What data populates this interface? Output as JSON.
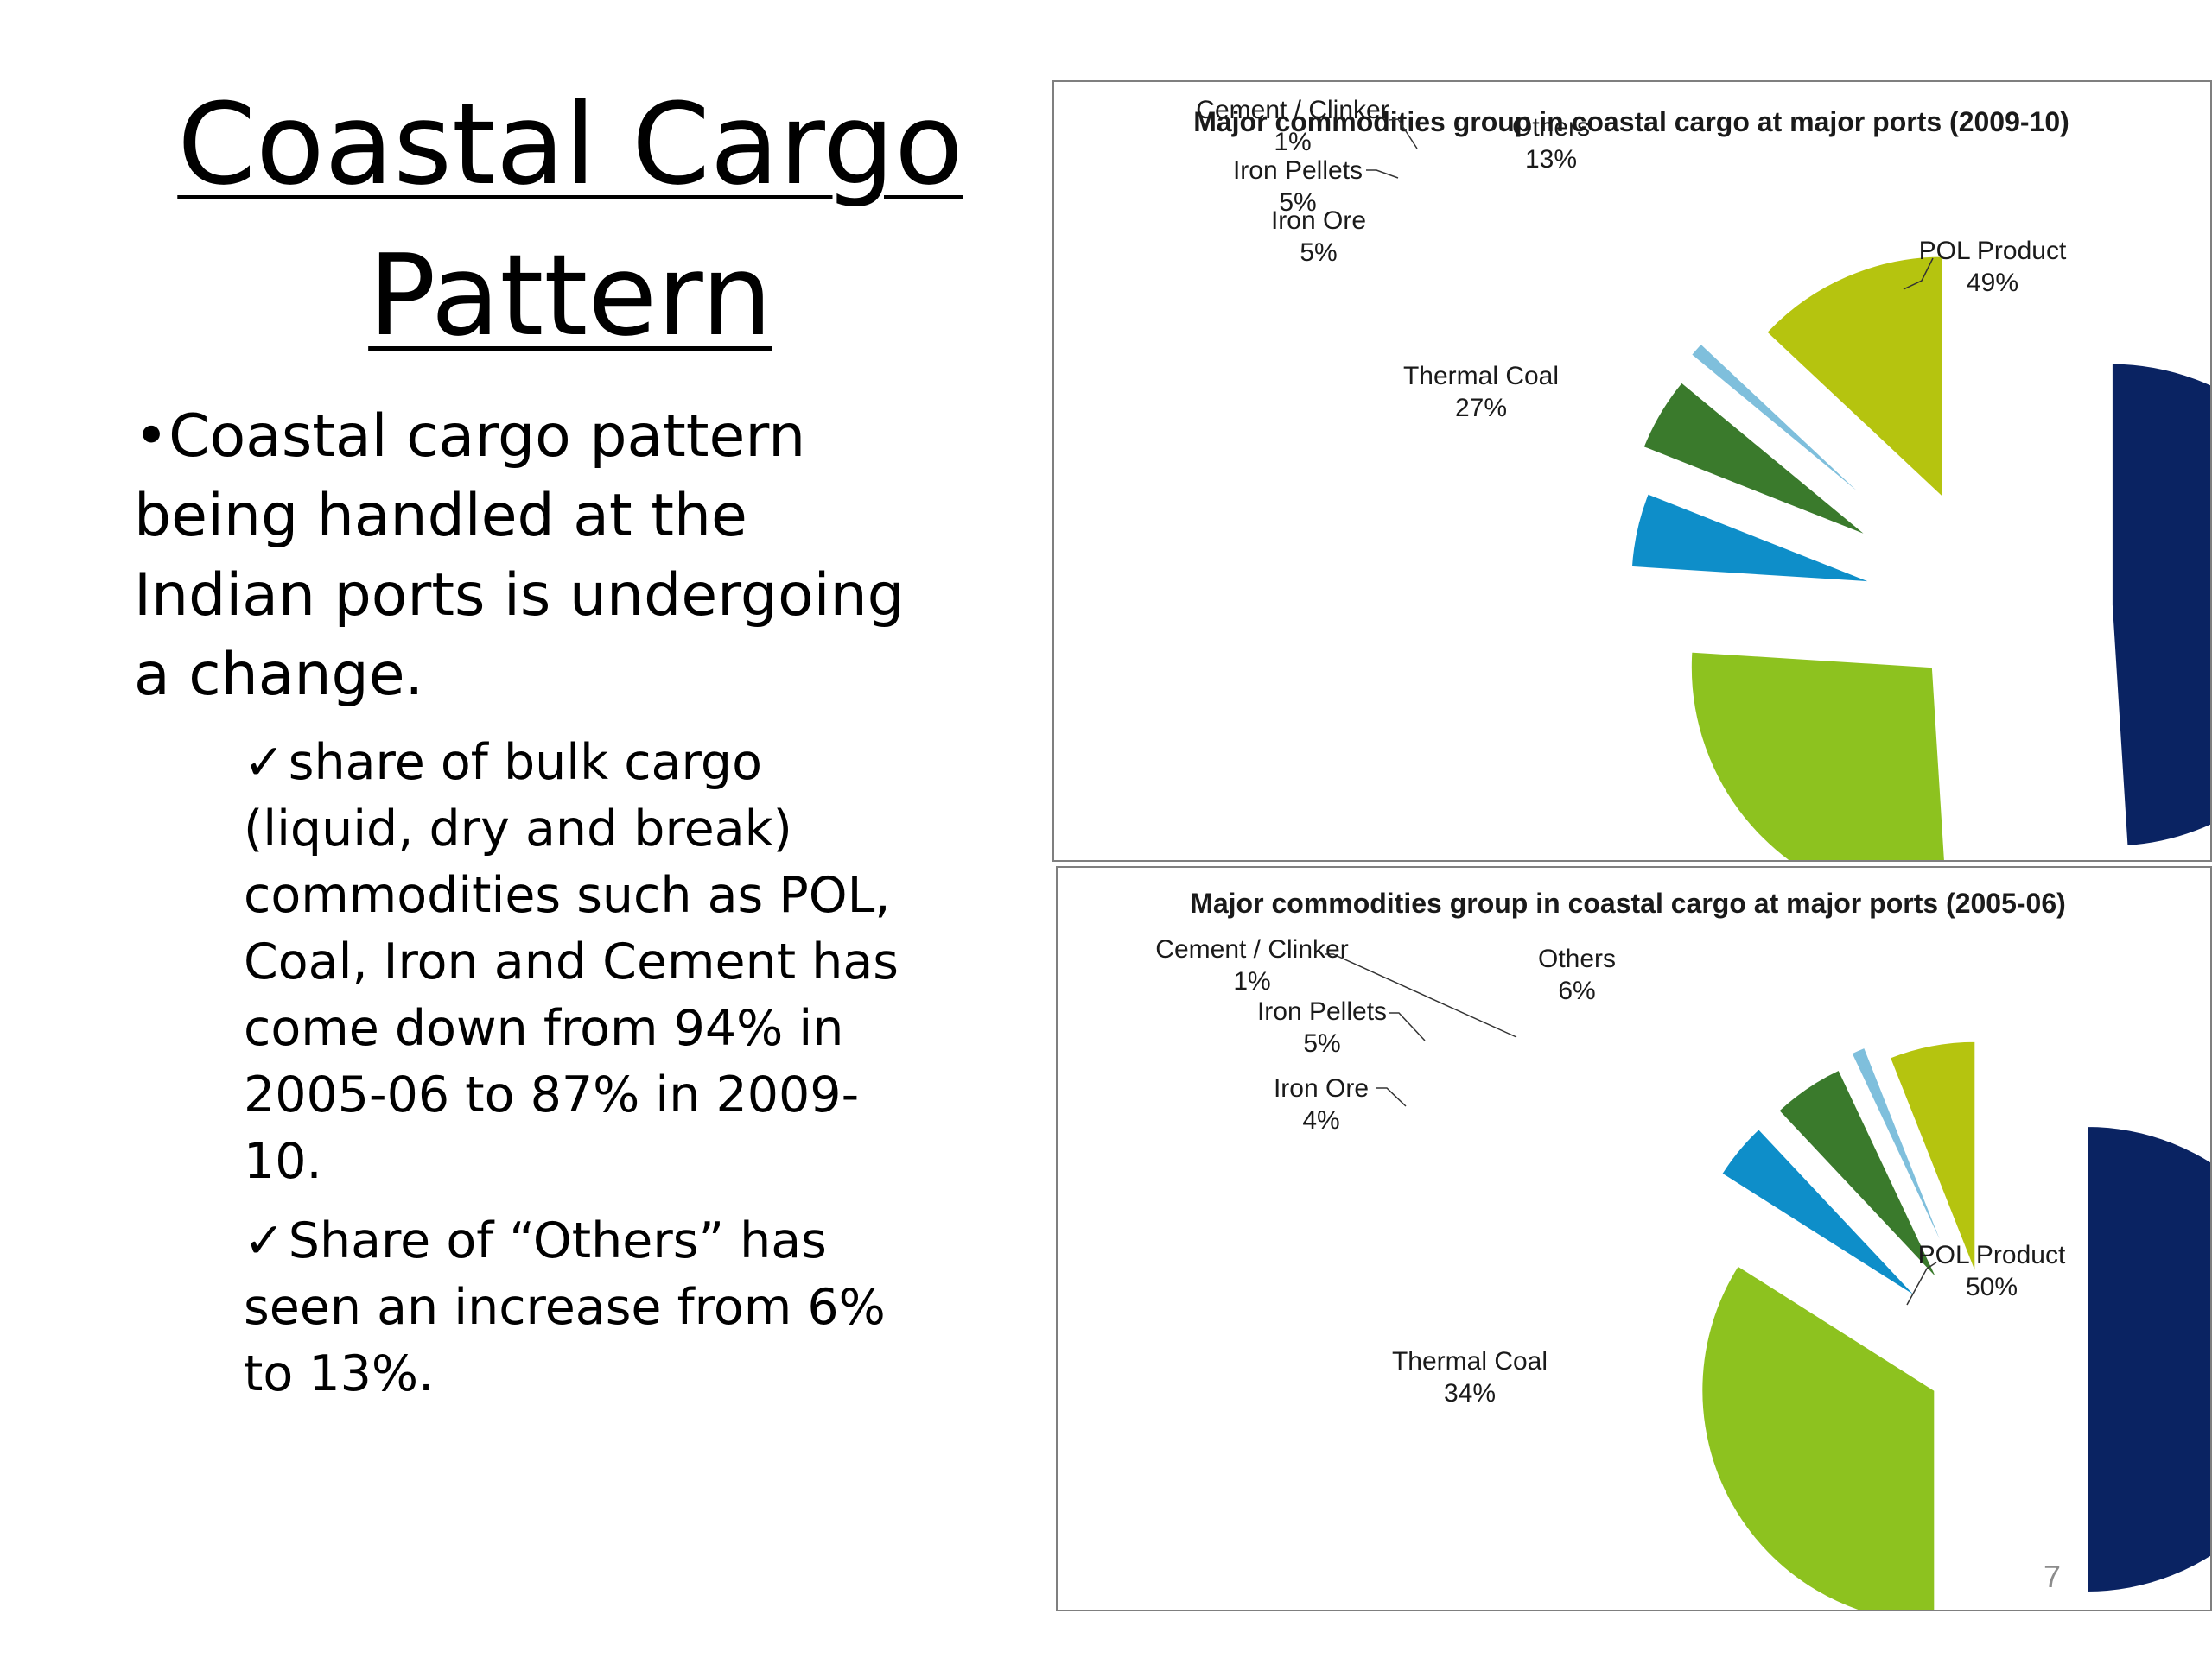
{
  "slide": {
    "title": "Coastal Cargo Pattern",
    "bullet_main": "•Coastal cargo pattern being handled at the Indian ports is undergoing a change.",
    "sub_bullets": [
      "share of bulk cargo (liquid, dry and break) commodities such as POL, Coal, Iron and Cement has come down from 94% in 2005-06 to 87% in 2009-10.",
      "Share of “Others” has seen an increase from 6% to 13%."
    ],
    "check_glyph": "✓",
    "page_number": "7"
  },
  "chart_data": [
    {
      "type": "pie",
      "title": "Major commodities group in coastal cargo at major ports (2009-10)",
      "slices": [
        {
          "label": "POL Product",
          "value": 49,
          "value_label": "49%",
          "color": "#0a2362"
        },
        {
          "label": "Thermal Coal",
          "value": 27,
          "value_label": "27%",
          "color": "#8dc21f"
        },
        {
          "label": "Iron Ore",
          "value": 5,
          "value_label": "5%",
          "color": "#0e8ec9"
        },
        {
          "label": "Iron Pellets",
          "value": 5,
          "value_label": "5%",
          "color": "#3a7a2c"
        },
        {
          "label": "Cement / Clinker",
          "value": 1,
          "value_label": "1%",
          "color": "#7fbfdc"
        },
        {
          "label": "Others",
          "value": 13,
          "value_label": "13%",
          "color": "#b5c40f"
        }
      ]
    },
    {
      "type": "pie",
      "title": "Major commodities group in coastal cargo at major ports (2005-06)",
      "slices": [
        {
          "label": "POL Product",
          "value": 50,
          "value_label": "50%",
          "color": "#0a2362"
        },
        {
          "label": "Thermal Coal",
          "value": 34,
          "value_label": "34%",
          "color": "#8dc21f"
        },
        {
          "label": "Iron Ore",
          "value": 4,
          "value_label": "4%",
          "color": "#0e8ec9"
        },
        {
          "label": "Iron Pellets",
          "value": 5,
          "value_label": "5%",
          "color": "#3a7a2c"
        },
        {
          "label": "Cement / Clinker",
          "value": 1,
          "value_label": "1%",
          "color": "#7fbfdc"
        },
        {
          "label": "Others",
          "value": 6,
          "value_label": "6%",
          "color": "#b5c40f"
        }
      ]
    }
  ]
}
